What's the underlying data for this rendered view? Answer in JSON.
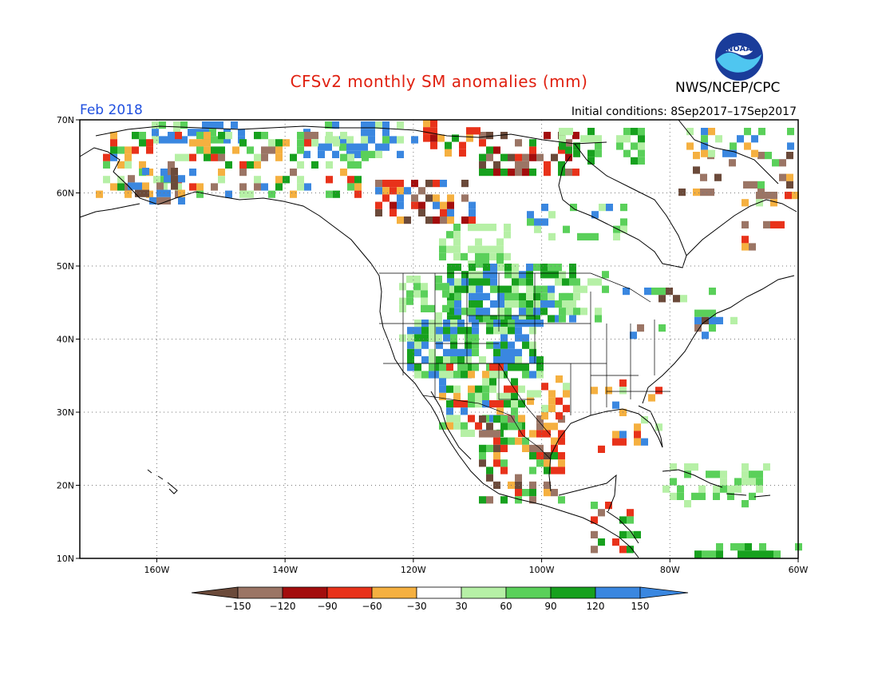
{
  "header": {
    "title": "CFSv2 monthly SM anomalies (mm)",
    "agency": "NWS/NCEP/CPC",
    "valid_month": "Feb 2018",
    "initial_conditions": "Initial conditions: 8Sep2017–17Sep2017",
    "logo_text": "NOAA"
  },
  "map": {
    "lon_range": [
      -172,
      -60
    ],
    "lat_range": [
      10,
      70
    ],
    "lon_ticks": [
      {
        "value": -160,
        "label": "160W"
      },
      {
        "value": -140,
        "label": "140W"
      },
      {
        "value": -120,
        "label": "120W"
      },
      {
        "value": -100,
        "label": "100W"
      },
      {
        "value": -80,
        "label": "80W"
      },
      {
        "value": -60,
        "label": "60W"
      }
    ],
    "lat_ticks": [
      {
        "value": 10,
        "label": "10N"
      },
      {
        "value": 20,
        "label": "20N"
      },
      {
        "value": 30,
        "label": "30N"
      },
      {
        "value": 40,
        "label": "40N"
      },
      {
        "value": 50,
        "label": "50N"
      },
      {
        "value": 60,
        "label": "60N"
      },
      {
        "value": 70,
        "label": "70N"
      }
    ],
    "grid_lines": "dotted"
  },
  "colorbar": {
    "labels": [
      "−150",
      "−120",
      "−90",
      "−60",
      "−30",
      "30",
      "60",
      "90",
      "120",
      "150"
    ],
    "colors": [
      "#6b4a3a",
      "#9b7565",
      "#a30d0d",
      "#e8321a",
      "#f5b040",
      "#ffffff",
      "#b6f0a6",
      "#5ad05a",
      "#17a11e",
      "#3a87e0",
      "#3a87e0"
    ]
  },
  "anomaly_colors": {
    "c1": "#6b4a3a",
    "c2": "#9b7565",
    "c3": "#a30d0d",
    "c4": "#e8321a",
    "c5": "#f5b040",
    "g1": "#b6f0a6",
    "g2": "#5ad05a",
    "g3": "#17a11e",
    "g4": "#3a87e0"
  }
}
